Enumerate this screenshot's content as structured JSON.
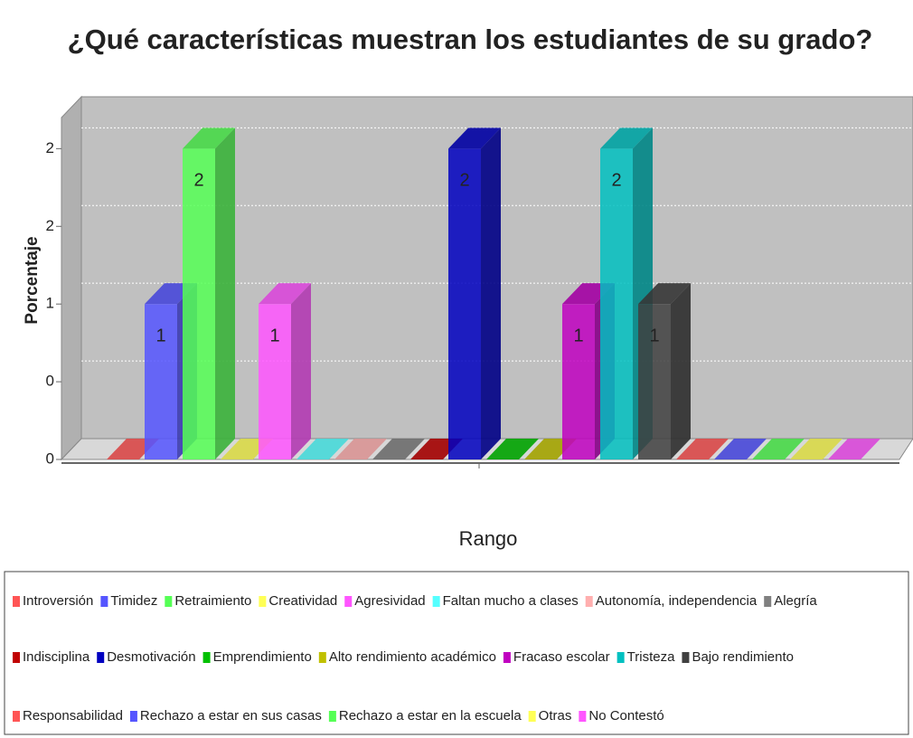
{
  "chart_data": {
    "type": "bar3d",
    "title": "¿Qué características muestran los estudiantes de su grado?",
    "x_label": "Rango",
    "y_label": "Porcentaje",
    "categories": [
      null
    ],
    "ylim": [
      0,
      2.2
    ],
    "yticks": [
      {
        "value": 0,
        "label": "0"
      },
      {
        "value": 0.5,
        "label": "0"
      },
      {
        "value": 1,
        "label": "1"
      },
      {
        "value": 1.5,
        "label": "2"
      },
      {
        "value": 2,
        "label": "2"
      }
    ],
    "grid": true,
    "legend": "bottom",
    "series": [
      {
        "name": "Introversión",
        "color": "#ff5555",
        "values": [
          0
        ]
      },
      {
        "name": "Timidez",
        "color": "#5555ff",
        "values": [
          1
        ]
      },
      {
        "name": "Retraimiento",
        "color": "#55ff55",
        "values": [
          2
        ]
      },
      {
        "name": "Creatividad",
        "color": "#ffff55",
        "values": [
          0
        ]
      },
      {
        "name": "Agresividad",
        "color": "#ff55ff",
        "values": [
          1
        ]
      },
      {
        "name": "Faltan mucho a clases",
        "color": "#55ffff",
        "values": [
          0
        ]
      },
      {
        "name": "Autonomía, independencia",
        "color": "#ffafaf",
        "values": [
          0
        ]
      },
      {
        "name": "Alegría",
        "color": "#808080",
        "values": [
          0
        ]
      },
      {
        "name": "Indisciplina",
        "color": "#c00000",
        "values": [
          0
        ]
      },
      {
        "name": "Desmotivación",
        "color": "#0000c0",
        "values": [
          2
        ]
      },
      {
        "name": "Emprendimiento",
        "color": "#00c000",
        "values": [
          0
        ]
      },
      {
        "name": "Alto rendimiento académico",
        "color": "#c0c000",
        "values": [
          0
        ]
      },
      {
        "name": "Fracaso escolar",
        "color": "#c000c0",
        "values": [
          1
        ]
      },
      {
        "name": "Tristeza",
        "color": "#00c0c0",
        "values": [
          2
        ]
      },
      {
        "name": "Bajo rendimiento",
        "color": "#404040",
        "values": [
          1
        ]
      },
      {
        "name": "Responsabilidad",
        "color": "#ff5555",
        "values": [
          0
        ]
      },
      {
        "name": "Rechazo a estar en sus casas",
        "color": "#5555ff",
        "values": [
          0
        ]
      },
      {
        "name": "Rechazo a estar en la escuela",
        "color": "#55ff55",
        "values": [
          0
        ]
      },
      {
        "name": "Otras",
        "color": "#ffff55",
        "values": [
          0
        ]
      },
      {
        "name": "No Contestó",
        "color": "#ff55ff",
        "values": [
          0
        ]
      }
    ]
  }
}
